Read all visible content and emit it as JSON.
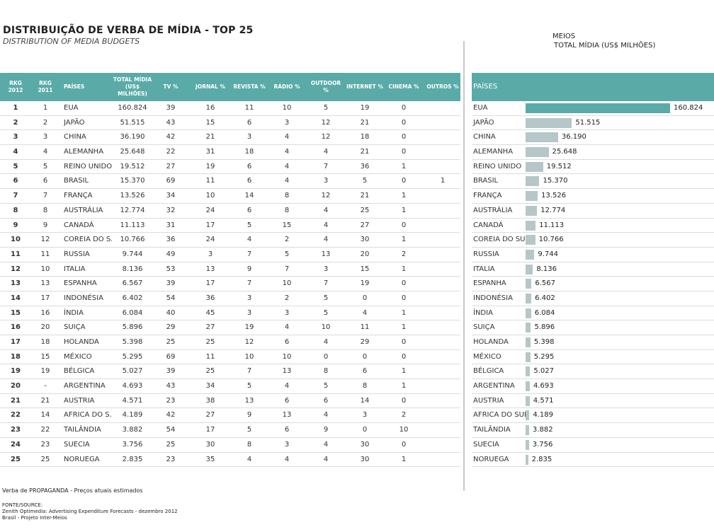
{
  "title": "DISTRIBUIÇÃO DE VERBA DE MÍDIA - TOP 25",
  "subtitle": "DISTRIBUTION OF MEDIA BUDGETS",
  "legend": {
    "label": "MEIOS",
    "value": "TOTAL MÍDIA (US$ MILHÕES)"
  },
  "table": {
    "headers": [
      "RKG 2012",
      "RKG 2011",
      "PAÍSES",
      "TOTAL MÍDIA (US$ MILHÕES)",
      "TV %",
      "JORNAL %",
      "REVISTA %",
      "RÁDIO %",
      "OUTDOOR %",
      "INTERNET %",
      "CINEMA %",
      "OUTROS %"
    ],
    "rows": [
      [
        "1",
        "1",
        "EUA",
        "160.824",
        "39",
        "16",
        "11",
        "10",
        "5",
        "19",
        "0",
        ""
      ],
      [
        "2",
        "2",
        "JAPÃO",
        "51.515",
        "43",
        "15",
        "6",
        "3",
        "12",
        "21",
        "0",
        ""
      ],
      [
        "3",
        "3",
        "CHINA",
        "36.190",
        "42",
        "21",
        "3",
        "4",
        "12",
        "18",
        "0",
        ""
      ],
      [
        "4",
        "4",
        "ALEMANHA",
        "25.648",
        "22",
        "31",
        "18",
        "4",
        "4",
        "21",
        "0",
        ""
      ],
      [
        "5",
        "5",
        "REINO UNIDO",
        "19.512",
        "27",
        "19",
        "6",
        "4",
        "7",
        "36",
        "1",
        ""
      ],
      [
        "6",
        "6",
        "BRASIL",
        "15.370",
        "69",
        "11",
        "6",
        "4",
        "3",
        "5",
        "0",
        "1"
      ],
      [
        "7",
        "7",
        "FRANÇA",
        "13.526",
        "34",
        "10",
        "14",
        "8",
        "12",
        "21",
        "1",
        ""
      ],
      [
        "8",
        "8",
        "AUSTRÁLIA",
        "12.774",
        "32",
        "24",
        "6",
        "8",
        "4",
        "25",
        "1",
        ""
      ],
      [
        "9",
        "9",
        "CANADÁ",
        "11.113",
        "31",
        "17",
        "5",
        "15",
        "4",
        "27",
        "0",
        ""
      ],
      [
        "10",
        "12",
        "COREIA DO S..",
        "10.766",
        "36",
        "24",
        "4",
        "2",
        "4",
        "30",
        "1",
        ""
      ],
      [
        "11",
        "11",
        "RUSSIA",
        "9.744",
        "49",
        "3",
        "7",
        "5",
        "13",
        "20",
        "2",
        ""
      ],
      [
        "12",
        "10",
        "ITALIA",
        "8.136",
        "53",
        "13",
        "9",
        "7",
        "3",
        "15",
        "1",
        ""
      ],
      [
        "13",
        "13",
        "ESPANHA",
        "6.567",
        "39",
        "17",
        "7",
        "10",
        "7",
        "19",
        "0",
        ""
      ],
      [
        "14",
        "17",
        "INDONÉSIA",
        "6.402",
        "54",
        "36",
        "3",
        "2",
        "5",
        "0",
        "0",
        ""
      ],
      [
        "15",
        "16",
        "ÍNDIA",
        "6.084",
        "40",
        "45",
        "3",
        "3",
        "5",
        "4",
        "1",
        ""
      ],
      [
        "16",
        "20",
        "SUIÇA",
        "5.896",
        "29",
        "27",
        "19",
        "4",
        "10",
        "11",
        "1",
        ""
      ],
      [
        "17",
        "18",
        "HOLANDA",
        "5.398",
        "25",
        "25",
        "12",
        "6",
        "4",
        "29",
        "0",
        ""
      ],
      [
        "18",
        "15",
        "MÉXICO",
        "5.295",
        "69",
        "11",
        "10",
        "10",
        "0",
        "0",
        "0",
        ""
      ],
      [
        "19",
        "19",
        "BÉLGICA",
        "5.027",
        "39",
        "25",
        "7",
        "13",
        "8",
        "6",
        "1",
        ""
      ],
      [
        "20",
        "-",
        "ARGENTINA",
        "4.693",
        "43",
        "34",
        "5",
        "4",
        "5",
        "8",
        "1",
        ""
      ],
      [
        "21",
        "21",
        "AUSTRIA",
        "4.571",
        "23",
        "38",
        "13",
        "6",
        "6",
        "14",
        "0",
        ""
      ],
      [
        "22",
        "14",
        "AFRICA DO S..",
        "4.189",
        "42",
        "27",
        "9",
        "13",
        "4",
        "3",
        "2",
        ""
      ],
      [
        "23",
        "22",
        "TAILÂNDIA",
        "3.882",
        "54",
        "17",
        "5",
        "6",
        "9",
        "0",
        "10",
        ""
      ],
      [
        "24",
        "23",
        "SUECIA",
        "3.756",
        "25",
        "30",
        "8",
        "3",
        "4",
        "30",
        "0",
        ""
      ],
      [
        "25",
        "25",
        "NORUEGA",
        "2.835",
        "23",
        "35",
        "4",
        "4",
        "4",
        "30",
        "1",
        ""
      ]
    ]
  },
  "chart_data": {
    "type": "bar",
    "header": "PAÍSES",
    "categories": [
      "EUA",
      "JAPÃO",
      "CHINA",
      "ALEMANHA",
      "REINO UNIDO",
      "BRASIL",
      "FRANÇA",
      "AUSTRÁLIA",
      "CANADÁ",
      "COREIA DO SUL",
      "RUSSIA",
      "ITALIA",
      "ESPANHA",
      "INDONÉSIA",
      "ÍNDIA",
      "SUIÇA",
      "HOLANDA",
      "MÉXICO",
      "BÉLGICA",
      "ARGENTINA",
      "AUSTRIA",
      "AFRICA DO SUL",
      "TAILÂNDIA",
      "SUECIA",
      "NORUEGA"
    ],
    "values": [
      160824,
      51515,
      36190,
      25648,
      19512,
      15370,
      13526,
      12774,
      11113,
      10766,
      9744,
      8136,
      6567,
      6402,
      6084,
      5896,
      5398,
      5295,
      5027,
      4693,
      4571,
      4189,
      3882,
      3756,
      2835
    ],
    "labels": [
      "160.824",
      "51.515",
      "36.190",
      "25.648",
      "19.512",
      "15.370",
      "13.526",
      "12.774",
      "11.113",
      "10.766",
      "9.744",
      "8.136",
      "6.567",
      "6.402",
      "6.084",
      "5.896",
      "5.398",
      "5.295",
      "5.027",
      "4.693",
      "4.571",
      "4.189",
      "3.882",
      "3.756",
      "2.835"
    ],
    "colors": {
      "highlight": "#5aaba8",
      "bar": "#b5c7c8"
    }
  },
  "footer": {
    "note": "Verba de PROPAGANDA - Preços atuais estimados",
    "source_label": "FONTE/SOURCE:",
    "source_1": "Zenith Optimedia: Advertising Expenditure Forecasts - dezembro 2012",
    "source_2": "Brasil - Projeto Inter-Meios"
  }
}
